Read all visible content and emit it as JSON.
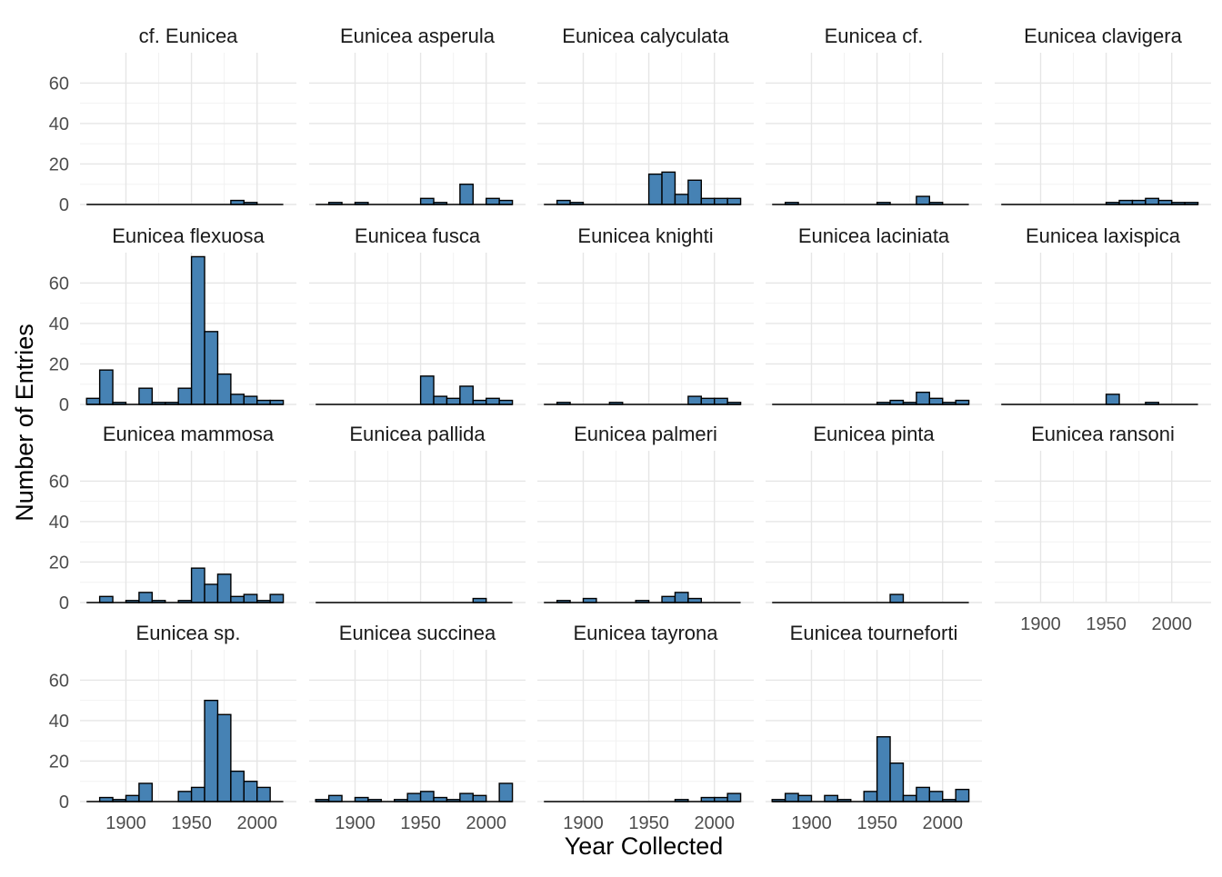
{
  "chart_data": {
    "type": "bar",
    "xlabel": "Year Collected",
    "ylabel": "Number of Entries",
    "ylim": [
      0,
      75
    ],
    "xlim": [
      1865,
      2030
    ],
    "y_ticks": [
      0,
      20,
      40,
      60
    ],
    "x_ticks": [
      1900,
      1950,
      2000
    ],
    "grid": true,
    "bar_fill": "#4682B4",
    "bar_stroke": "#000000",
    "bins": [
      1875,
      1885,
      1895,
      1905,
      1915,
      1925,
      1935,
      1945,
      1955,
      1965,
      1975,
      1985,
      1995,
      2005,
      2015
    ],
    "bin_width": 10,
    "panels": [
      {
        "title": "cf. Eunicea",
        "values": [
          0,
          0,
          0,
          0,
          0,
          0,
          0,
          0,
          0,
          0,
          0,
          2,
          1,
          0,
          0
        ]
      },
      {
        "title": "Eunicea asperula",
        "values": [
          0,
          1,
          0,
          1,
          0,
          0,
          0,
          0,
          3,
          1,
          0,
          10,
          0,
          3,
          2
        ]
      },
      {
        "title": "Eunicea calyculata",
        "values": [
          0,
          2,
          1,
          0,
          0,
          0,
          0,
          0,
          15,
          16,
          5,
          12,
          3,
          3,
          3
        ]
      },
      {
        "title": "Eunicea cf.",
        "values": [
          0,
          1,
          0,
          0,
          0,
          0,
          0,
          0,
          1,
          0,
          0,
          4,
          1,
          0,
          0
        ]
      },
      {
        "title": "Eunicea clavigera",
        "values": [
          0,
          0,
          0,
          0,
          0,
          0,
          0,
          0,
          1,
          2,
          2,
          3,
          2,
          1,
          1
        ]
      },
      {
        "title": "Eunicea flexuosa",
        "values": [
          3,
          17,
          1,
          0,
          8,
          1,
          1,
          8,
          73,
          36,
          15,
          5,
          4,
          2,
          2
        ]
      },
      {
        "title": "Eunicea fusca",
        "values": [
          0,
          0,
          0,
          0,
          0,
          0,
          0,
          0,
          14,
          4,
          3,
          9,
          2,
          3,
          2
        ]
      },
      {
        "title": "Eunicea knighti",
        "values": [
          0,
          1,
          0,
          0,
          0,
          1,
          0,
          0,
          0,
          0,
          0,
          4,
          3,
          3,
          1
        ]
      },
      {
        "title": "Eunicea laciniata",
        "values": [
          0,
          0,
          0,
          0,
          0,
          0,
          0,
          0,
          1,
          2,
          1,
          6,
          3,
          1,
          2
        ]
      },
      {
        "title": "Eunicea laxispica",
        "values": [
          0,
          0,
          0,
          0,
          0,
          0,
          0,
          0,
          5,
          0,
          0,
          1,
          0,
          0,
          0
        ]
      },
      {
        "title": "Eunicea mammosa",
        "values": [
          0,
          3,
          0,
          1,
          5,
          1,
          0,
          1,
          17,
          9,
          14,
          3,
          4,
          1,
          4
        ]
      },
      {
        "title": "Eunicea pallida",
        "values": [
          0,
          0,
          0,
          0,
          0,
          0,
          0,
          0,
          0,
          0,
          0,
          0,
          2,
          0,
          0
        ]
      },
      {
        "title": "Eunicea palmeri",
        "values": [
          0,
          1,
          0,
          2,
          0,
          0,
          0,
          1,
          0,
          3,
          5,
          2,
          0,
          0,
          0
        ]
      },
      {
        "title": "Eunicea pinta",
        "values": [
          0,
          0,
          0,
          0,
          0,
          0,
          0,
          0,
          0,
          4,
          0,
          0,
          0,
          0,
          0
        ]
      },
      {
        "title": "Eunicea ransoni",
        "values": [
          0,
          0,
          0,
          0,
          0,
          0,
          0,
          0,
          0,
          0,
          0,
          0,
          0,
          0,
          0
        ]
      },
      {
        "title": "Eunicea sp.",
        "values": [
          0,
          2,
          1,
          3,
          9,
          0,
          0,
          5,
          7,
          50,
          43,
          15,
          10,
          7,
          0
        ]
      },
      {
        "title": "Eunicea succinea",
        "values": [
          1,
          3,
          0,
          2,
          1,
          0,
          1,
          4,
          5,
          2,
          1,
          4,
          3,
          0,
          9
        ]
      },
      {
        "title": "Eunicea tayrona",
        "values": [
          0,
          0,
          0,
          0,
          0,
          0,
          0,
          0,
          0,
          0,
          1,
          0,
          2,
          2,
          4
        ]
      },
      {
        "title": "Eunicea tourneforti",
        "values": [
          1,
          4,
          3,
          0,
          3,
          1,
          0,
          5,
          32,
          19,
          3,
          7,
          5,
          1,
          6
        ]
      }
    ]
  }
}
